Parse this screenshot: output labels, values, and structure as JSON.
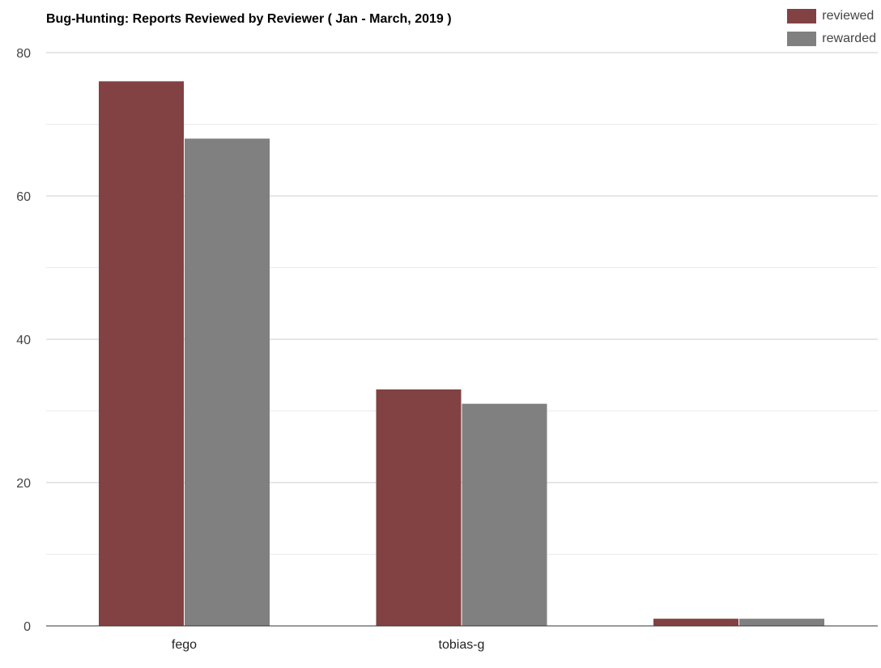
{
  "chart_data": {
    "type": "bar",
    "title": "Bug-Hunting: Reports Reviewed by Reviewer ( Jan - March, 2019 )",
    "categories": [
      "fego",
      "tobias-g",
      ""
    ],
    "series": [
      {
        "name": "reviewed",
        "color": "#824142",
        "values": [
          76,
          33,
          1
        ]
      },
      {
        "name": "rewarded",
        "color": "#808080",
        "values": [
          68,
          31,
          1
        ]
      }
    ],
    "xlabel": "",
    "ylabel": "",
    "ylim": [
      0,
      80
    ],
    "yticks": [
      0,
      20,
      40,
      60,
      80
    ],
    "grid": true,
    "legend_position": "top-right"
  }
}
